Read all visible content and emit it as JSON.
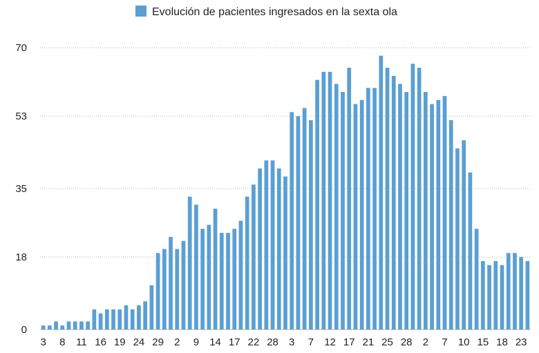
{
  "chart_data": {
    "type": "bar",
    "title": "",
    "legend": {
      "label": "Evolución de pacientes ingresados en la sexta ola",
      "position": "top-center"
    },
    "series": [
      {
        "name": "Evolución de pacientes ingresados en la sexta ola",
        "values": [
          1,
          1,
          2,
          1,
          2,
          2,
          2,
          2,
          5,
          4,
          5,
          5,
          5,
          6,
          5,
          6,
          7,
          11,
          19,
          20,
          23,
          20,
          22,
          33,
          31,
          25,
          26,
          30,
          24,
          24,
          25,
          27,
          33,
          36,
          40,
          42,
          42,
          40,
          38,
          54,
          53,
          55,
          52,
          62,
          64,
          64,
          61,
          59,
          65,
          56,
          57,
          60,
          60,
          68,
          65,
          63,
          61,
          59,
          66,
          65,
          59,
          56,
          57,
          58,
          52,
          45,
          47,
          39,
          25,
          17,
          16,
          17,
          16,
          19,
          19,
          18,
          17
        ]
      }
    ],
    "x_tick_labels": [
      "3",
      "8",
      "11",
      "16",
      "19",
      "24",
      "29",
      "2",
      "9",
      "14",
      "17",
      "22",
      "28",
      "3",
      "7",
      "12",
      "17",
      "21",
      "25",
      "28",
      "2",
      "7",
      "10",
      "15",
      "18",
      "23"
    ],
    "y_ticks": [
      0,
      18,
      35,
      53,
      70
    ],
    "ylim": [
      0,
      70
    ],
    "grid": "horizontal-dotted",
    "colors": {
      "bar": "#5a9fd4"
    }
  }
}
